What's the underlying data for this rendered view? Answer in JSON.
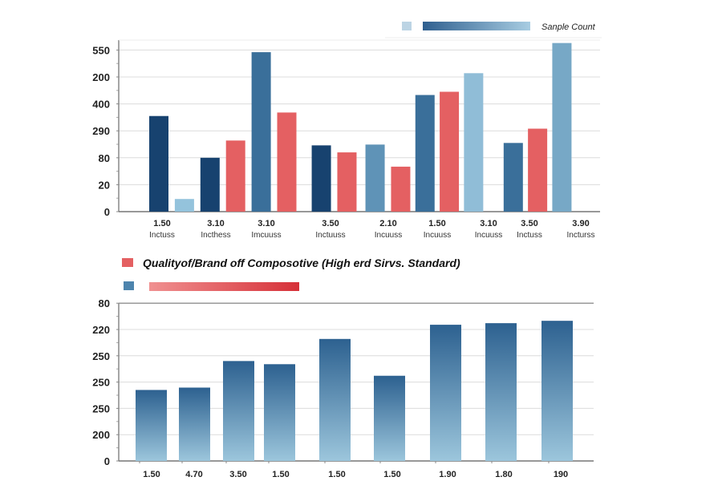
{
  "chart_data": [
    {
      "type": "bar",
      "legend": {
        "label": "Sanple Count",
        "placement": "top-right",
        "swatch_color": "#bcd4e4",
        "gradient": [
          "#2f5f8f",
          "#a8cde2"
        ]
      },
      "y_ticks": [
        "0",
        "20",
        "80",
        "290",
        "400",
        "200",
        "550"
      ],
      "value_units": "tick-index (0 = baseline, 6 = top tick)",
      "ylim": [
        0,
        6.3
      ],
      "grid": true,
      "categories": [
        {
          "value": "1.50",
          "sub": "Inctuss"
        },
        {
          "value": "3.10",
          "sub": "Incthess"
        },
        {
          "value": "3.10",
          "sub": "Imcuuss"
        },
        {
          "value": "3.50",
          "sub": "Inctuuss"
        },
        {
          "value": "2.10",
          "sub": "Incuuss"
        },
        {
          "value": "1.50",
          "sub": "Incuuss"
        },
        {
          "value": "3.10",
          "sub": "Incuuss"
        },
        {
          "value": "3.50",
          "sub": "Inctuss"
        },
        {
          "value": "3.90",
          "sub": "Incturss"
        }
      ],
      "bars": [
        {
          "slot": 0.0,
          "value": 3.55,
          "color": "#17426f"
        },
        {
          "slot": 1.0,
          "value": 0.47,
          "color": "#94c3dc"
        },
        {
          "slot": 2.0,
          "value": 2.0,
          "color": "#17426f"
        },
        {
          "slot": 3.0,
          "value": 2.64,
          "color": "#e46062"
        },
        {
          "slot": 4.0,
          "value": 5.92,
          "color": "#3a6f9a"
        },
        {
          "slot": 5.0,
          "value": 3.68,
          "color": "#e46062"
        },
        {
          "slot": 6.35,
          "value": 2.46,
          "color": "#17426f"
        },
        {
          "slot": 7.35,
          "value": 2.2,
          "color": "#e46062"
        },
        {
          "slot": 8.45,
          "value": 2.49,
          "color": "#5f93b7"
        },
        {
          "slot": 9.45,
          "value": 1.67,
          "color": "#e46062"
        },
        {
          "slot": 10.4,
          "value": 4.33,
          "color": "#3a6f9a"
        },
        {
          "slot": 11.35,
          "value": 4.45,
          "color": "#e46062"
        },
        {
          "slot": 12.3,
          "value": 5.14,
          "color": "#90bdd7"
        },
        {
          "slot": 13.85,
          "value": 2.55,
          "color": "#3a6f9a"
        },
        {
          "slot": 14.8,
          "value": 3.08,
          "color": "#e46062"
        },
        {
          "slot": 15.75,
          "value": 6.26,
          "color": "#77a8c6"
        }
      ]
    },
    {
      "type": "bar",
      "title": "Quality of/Brand off Compositive (High erd Sirvs. Standard)",
      "title_display": "Qualityof/Brand off Composotive (High erd Sirvs. Standard)",
      "legend": {
        "swatch_color": "#e46062",
        "secondary_swatch_color": "#4d84ad",
        "gradient": [
          "#f09090",
          "#d63038"
        ]
      },
      "y_ticks": [
        "0",
        "200",
        "250",
        "250",
        "250",
        "220",
        "80"
      ],
      "value_units": "tick-index (0 = baseline, 6 = top tick)",
      "ylim": [
        0,
        6
      ],
      "grid": true,
      "categories": [
        "1.50",
        "4.70",
        "3.50",
        "1.50",
        "1.50",
        "1.50",
        "1.90",
        "1.80",
        "190"
      ],
      "values": [
        2.7,
        2.79,
        3.8,
        3.68,
        4.64,
        3.24,
        5.18,
        5.24,
        5.33
      ],
      "bar_gradient": [
        "#2d6190",
        "#9cc6dc"
      ]
    }
  ]
}
